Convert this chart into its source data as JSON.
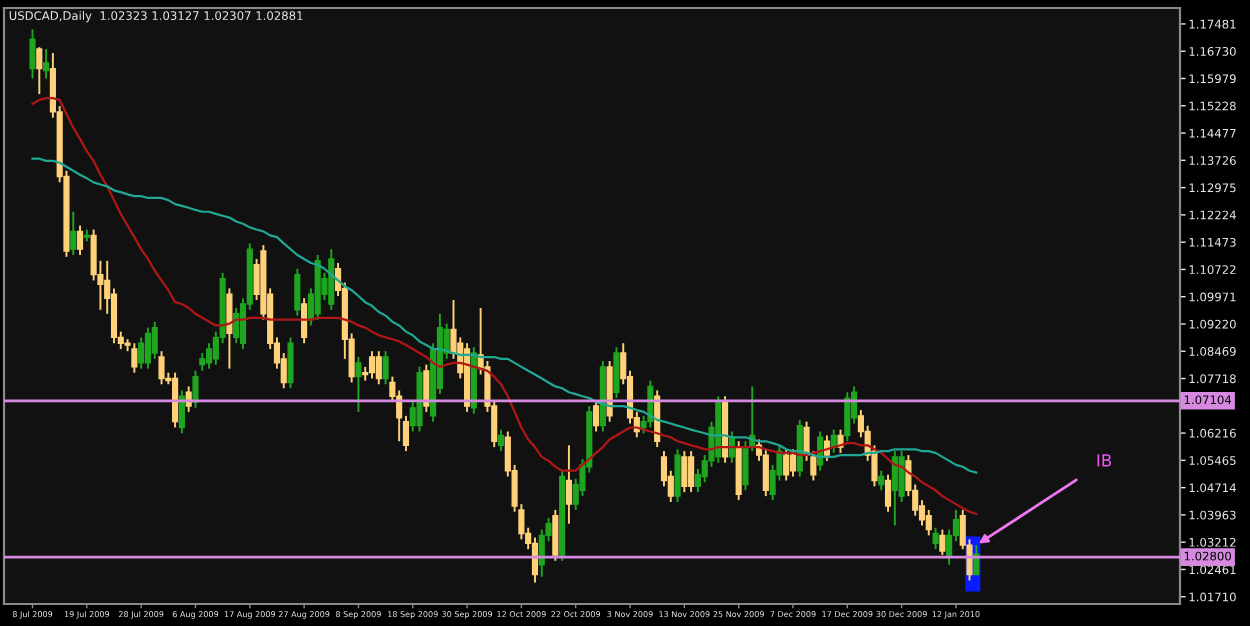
{
  "chart_data": {
    "type": "candlestick",
    "title": "USDCAD,Daily  1.02323 1.03127 1.02307 1.02881",
    "categories": [
      "8 Jul 2009",
      null,
      null,
      null,
      null,
      null,
      null,
      null,
      "19 Jul 2009",
      null,
      null,
      null,
      null,
      null,
      null,
      null,
      "28 Jul 2009",
      null,
      null,
      null,
      null,
      null,
      null,
      null,
      "6 Aug 2009",
      null,
      null,
      null,
      null,
      null,
      null,
      null,
      "17 Aug 2009",
      null,
      null,
      null,
      null,
      null,
      null,
      null,
      "27 Aug 2009",
      null,
      null,
      null,
      null,
      null,
      null,
      null,
      "8 Sep 2009",
      null,
      null,
      null,
      null,
      null,
      null,
      null,
      "18 Sep 2009",
      null,
      null,
      null,
      null,
      null,
      null,
      null,
      "30 Sep 2009",
      null,
      null,
      null,
      null,
      null,
      null,
      null,
      "12 Oct 2009",
      null,
      null,
      null,
      null,
      null,
      null,
      null,
      "22 Oct 2009",
      null,
      null,
      null,
      null,
      null,
      null,
      null,
      "3 Nov 2009",
      null,
      null,
      null,
      null,
      null,
      null,
      null,
      "13 Nov 2009",
      null,
      null,
      null,
      null,
      null,
      null,
      null,
      "25 Nov 2009",
      null,
      null,
      null,
      null,
      null,
      null,
      null,
      "7 Dec 2009",
      null,
      null,
      null,
      null,
      null,
      null,
      null,
      "17 Dec 2009",
      null,
      null,
      null,
      null,
      null,
      null,
      null,
      "30 Dec 2009",
      null,
      null,
      null,
      null,
      null,
      null,
      null,
      "12 Jan 2010",
      null,
      null,
      null
    ],
    "ohlc": [
      [
        1.1625,
        1.1733,
        1.1598,
        1.1706
      ],
      [
        1.1679,
        1.1684,
        1.1555,
        1.1625
      ],
      [
        1.162,
        1.1679,
        1.1598,
        1.1641
      ],
      [
        1.1625,
        1.1668,
        1.149,
        1.1506
      ],
      [
        1.1506,
        1.1522,
        1.1312,
        1.1328
      ],
      [
        1.1328,
        1.1344,
        1.1107,
        1.1123
      ],
      [
        1.1128,
        1.1231,
        1.1112,
        1.1177
      ],
      [
        1.1177,
        1.1193,
        1.1112,
        1.1128
      ],
      [
        1.1161,
        1.1182,
        1.115,
        1.1166
      ],
      [
        1.1166,
        1.1182,
        1.1042,
        1.1058
      ],
      [
        1.1058,
        1.1096,
        1.0961,
        1.1031
      ],
      [
        1.1042,
        1.1096,
        1.095,
        1.0993
      ],
      [
        1.1004,
        1.102,
        1.0869,
        1.0885
      ],
      [
        1.0885,
        1.0901,
        1.0853,
        1.0869
      ],
      [
        1.0869,
        1.088,
        1.0847,
        1.0864
      ],
      [
        1.0853,
        1.0869,
        1.0788,
        1.0804
      ],
      [
        1.0815,
        1.0885,
        1.0799,
        1.0869
      ],
      [
        1.0815,
        1.0912,
        1.0799,
        1.0896
      ],
      [
        1.0842,
        1.0928,
        1.0826,
        1.0912
      ],
      [
        1.0831,
        1.0847,
        1.0756,
        1.0772
      ],
      [
        1.0772,
        1.0788,
        1.0756,
        1.0766
      ],
      [
        1.0772,
        1.0788,
        1.0637,
        1.0653
      ],
      [
        1.0637,
        1.0739,
        1.0621,
        1.0723
      ],
      [
        1.0734,
        1.075,
        1.068,
        1.0696
      ],
      [
        1.0707,
        1.0793,
        1.0691,
        1.0777
      ],
      [
        1.081,
        1.0842,
        1.0793,
        1.0826
      ],
      [
        1.0815,
        1.0869,
        1.0799,
        1.0853
      ],
      [
        1.0826,
        1.0901,
        1.081,
        1.0885
      ],
      [
        1.0885,
        1.1063,
        1.0869,
        1.1047
      ],
      [
        1.1004,
        1.102,
        1.0799,
        1.0896
      ],
      [
        1.0885,
        1.0966,
        1.0869,
        1.095
      ],
      [
        1.0869,
        1.0993,
        1.0853,
        1.0977
      ],
      [
        1.0977,
        1.1144,
        1.0961,
        1.1128
      ],
      [
        1.1085,
        1.1101,
        1.0988,
        1.1004
      ],
      [
        1.1123,
        1.1139,
        1.0934,
        1.095
      ],
      [
        1.1004,
        1.102,
        1.0853,
        1.0869
      ],
      [
        1.0869,
        1.0885,
        1.0799,
        1.0815
      ],
      [
        1.0826,
        1.0842,
        1.0745,
        1.0761
      ],
      [
        1.0761,
        1.0885,
        1.0745,
        1.0869
      ],
      [
        1.0961,
        1.1074,
        1.0945,
        1.1058
      ],
      [
        1.0977,
        1.0993,
        1.0869,
        1.0885
      ],
      [
        1.0934,
        1.102,
        1.0918,
        1.1004
      ],
      [
        1.095,
        1.1112,
        1.0934,
        1.1096
      ],
      [
        1.1004,
        1.1063,
        1.0988,
        1.1047
      ],
      [
        1.0977,
        1.1128,
        1.0961,
        1.1101
      ],
      [
        1.1074,
        1.109,
        1.0999,
        1.1015
      ],
      [
        1.102,
        1.1036,
        1.0826,
        1.088
      ],
      [
        1.088,
        1.0896,
        1.0761,
        1.0777
      ],
      [
        1.0777,
        1.0831,
        1.068,
        1.0815
      ],
      [
        1.0788,
        1.0804,
        1.0766,
        1.0783
      ],
      [
        1.0831,
        1.0847,
        1.0772,
        1.0788
      ],
      [
        1.0831,
        1.0847,
        1.0756,
        1.0772
      ],
      [
        1.0772,
        1.0847,
        1.0756,
        1.0831
      ],
      [
        1.0761,
        1.0777,
        1.0707,
        1.0723
      ],
      [
        1.0723,
        1.0739,
        1.0599,
        1.0664
      ],
      [
        1.0653,
        1.0669,
        1.0572,
        1.0588
      ],
      [
        1.0642,
        1.0707,
        1.0626,
        1.0691
      ],
      [
        1.0642,
        1.0804,
        1.0626,
        1.0788
      ],
      [
        1.0793,
        1.081,
        1.068,
        1.0696
      ],
      [
        1.0669,
        1.0869,
        1.0653,
        1.0853
      ],
      [
        1.0745,
        1.095,
        1.0729,
        1.0912
      ],
      [
        1.0842,
        1.0923,
        1.0826,
        1.0907
      ],
      [
        1.0907,
        1.0988,
        1.0826,
        1.0842
      ],
      [
        1.0869,
        1.0885,
        1.0772,
        1.0788
      ],
      [
        1.0853,
        1.0869,
        1.068,
        1.0696
      ],
      [
        1.0691,
        1.0858,
        1.0675,
        1.0842
      ],
      [
        1.0837,
        1.0966,
        1.0783,
        1.0799
      ],
      [
        1.0804,
        1.082,
        1.068,
        1.0696
      ],
      [
        1.0696,
        1.0712,
        1.0583,
        1.0599
      ],
      [
        1.0588,
        1.0631,
        1.0572,
        1.0615
      ],
      [
        1.061,
        1.0626,
        1.0502,
        1.0518
      ],
      [
        1.0518,
        1.0534,
        1.0405,
        1.0421
      ],
      [
        1.041,
        1.0426,
        1.0329,
        1.0345
      ],
      [
        1.0345,
        1.0361,
        1.0302,
        1.0318
      ],
      [
        1.0318,
        1.0334,
        1.021,
        1.0232
      ],
      [
        1.0259,
        1.0356,
        1.0226,
        1.034
      ],
      [
        1.034,
        1.0388,
        1.0324,
        1.0372
      ],
      [
        1.0394,
        1.041,
        1.027,
        1.0286
      ],
      [
        1.0286,
        1.0518,
        1.027,
        1.0502
      ],
      [
        1.0491,
        1.0588,
        1.0372,
        1.0426
      ],
      [
        1.0426,
        1.0496,
        1.041,
        1.048
      ],
      [
        1.0464,
        1.055,
        1.0448,
        1.0534
      ],
      [
        1.0529,
        1.0696,
        1.0513,
        1.068
      ],
      [
        1.0696,
        1.0712,
        1.0626,
        1.0642
      ],
      [
        1.0642,
        1.082,
        1.0626,
        1.0804
      ],
      [
        1.0804,
        1.082,
        1.0653,
        1.0669
      ],
      [
        1.0734,
        1.0858,
        1.0718,
        1.0842
      ],
      [
        1.0842,
        1.0869,
        1.0756,
        1.0772
      ],
      [
        1.0777,
        1.0793,
        1.0648,
        1.0664
      ],
      [
        1.0664,
        1.068,
        1.061,
        1.0626
      ],
      [
        1.0637,
        1.0669,
        1.0621,
        1.0653
      ],
      [
        1.0653,
        1.0766,
        1.0637,
        1.075
      ],
      [
        1.0723,
        1.0739,
        1.0583,
        1.0599
      ],
      [
        1.0556,
        1.0572,
        1.0475,
        1.0491
      ],
      [
        1.0502,
        1.0518,
        1.0432,
        1.0448
      ],
      [
        1.0448,
        1.0577,
        1.0432,
        1.0561
      ],
      [
        1.0556,
        1.0572,
        1.0459,
        1.0475
      ],
      [
        1.0556,
        1.0572,
        1.0459,
        1.0475
      ],
      [
        1.0475,
        1.0523,
        1.0459,
        1.0507
      ],
      [
        1.0502,
        1.0561,
        1.0486,
        1.0545
      ],
      [
        1.0545,
        1.0653,
        1.0529,
        1.0637
      ],
      [
        1.0556,
        1.0723,
        1.054,
        1.0707
      ],
      [
        1.0707,
        1.0723,
        1.054,
        1.0556
      ],
      [
        1.0556,
        1.0626,
        1.054,
        1.061
      ],
      [
        1.0583,
        1.0599,
        1.0437,
        1.0453
      ],
      [
        1.048,
        1.0599,
        1.0464,
        1.0583
      ],
      [
        1.0588,
        1.075,
        1.0572,
        1.0615
      ],
      [
        1.0588,
        1.0604,
        1.0545,
        1.0561
      ],
      [
        1.0561,
        1.0577,
        1.0448,
        1.0464
      ],
      [
        1.0453,
        1.0534,
        1.0437,
        1.0518
      ],
      [
        1.0507,
        1.0588,
        1.0491,
        1.0572
      ],
      [
        1.0561,
        1.0577,
        1.0491,
        1.0507
      ],
      [
        1.0561,
        1.0577,
        1.0502,
        1.0518
      ],
      [
        1.0518,
        1.0658,
        1.0502,
        1.0642
      ],
      [
        1.0637,
        1.0653,
        1.0545,
        1.0561
      ],
      [
        1.0556,
        1.0572,
        1.0491,
        1.0507
      ],
      [
        1.0534,
        1.0626,
        1.0518,
        1.061
      ],
      [
        1.0599,
        1.0615,
        1.0545,
        1.0561
      ],
      [
        1.0583,
        1.0631,
        1.0567,
        1.0615
      ],
      [
        1.0615,
        1.0631,
        1.0567,
        1.0583
      ],
      [
        1.0615,
        1.0734,
        1.0599,
        1.0718
      ],
      [
        1.0664,
        1.075,
        1.0648,
        1.0734
      ],
      [
        1.0669,
        1.0685,
        1.061,
        1.0626
      ],
      [
        1.0626,
        1.0642,
        1.0545,
        1.0561
      ],
      [
        1.0572,
        1.0588,
        1.0475,
        1.0491
      ],
      [
        1.048,
        1.0518,
        1.0464,
        1.0502
      ],
      [
        1.0491,
        1.0507,
        1.0405,
        1.0421
      ],
      [
        1.0464,
        1.0572,
        1.0367,
        1.0556
      ],
      [
        1.0448,
        1.0572,
        1.0432,
        1.0556
      ],
      [
        1.0545,
        1.0561,
        1.0448,
        1.0464
      ],
      [
        1.0464,
        1.048,
        1.0394,
        1.041
      ],
      [
        1.0421,
        1.0437,
        1.0367,
        1.0383
      ],
      [
        1.0394,
        1.041,
        1.034,
        1.0356
      ],
      [
        1.0318,
        1.0361,
        1.0302,
        1.0345
      ],
      [
        1.034,
        1.0356,
        1.0286,
        1.0297
      ],
      [
        1.0286,
        1.0356,
        1.0259,
        1.034
      ],
      [
        1.034,
        1.041,
        1.0324,
        1.0383
      ],
      [
        1.0394,
        1.041,
        1.0302,
        1.0313
      ],
      [
        1.0313,
        1.0329,
        1.0216,
        1.0232
      ],
      [
        1.0232,
        1.0313,
        1.0231,
        1.0288
      ]
    ],
    "colors": [
      "#1fa51f",
      "#ffd27a",
      "#1fa51f",
      "#ffd27a",
      "#ffd27a",
      "#ffd27a",
      "#1fa51f",
      "#ffd27a",
      "#1fa51f",
      "#ffd27a",
      "#ffd27a",
      "#ffd27a",
      "#ffd27a",
      "#ffd27a",
      "#ffd27a",
      "#ffd27a",
      "#1fa51f",
      "#1fa51f",
      "#1fa51f",
      "#ffd27a",
      "#ffd27a",
      "#ffd27a",
      "#1fa51f",
      "#ffd27a",
      "#1fa51f",
      "#1fa51f",
      "#1fa51f",
      "#1fa51f",
      "#1fa51f",
      "#ffd27a",
      "#1fa51f",
      "#1fa51f",
      "#1fa51f",
      "#ffd27a",
      "#ffd27a",
      "#ffd27a",
      "#ffd27a",
      "#ffd27a",
      "#1fa51f",
      "#1fa51f",
      "#ffd27a",
      "#1fa51f",
      "#1fa51f",
      "#1fa51f",
      "#1fa51f",
      "#ffd27a",
      "#ffd27a",
      "#ffd27a",
      "#1fa51f",
      "#ffd27a",
      "#ffd27a",
      "#ffd27a",
      "#1fa51f",
      "#ffd27a",
      "#ffd27a",
      "#ffd27a",
      "#1fa51f",
      "#1fa51f",
      "#ffd27a",
      "#1fa51f",
      "#1fa51f",
      "#1fa51f",
      "#ffd27a",
      "#ffd27a",
      "#ffd27a",
      "#1fa51f",
      "#ffd27a",
      "#ffd27a",
      "#ffd27a",
      "#1fa51f",
      "#ffd27a",
      "#ffd27a",
      "#ffd27a",
      "#ffd27a",
      "#ffd27a",
      "#1fa51f",
      "#1fa51f",
      "#ffd27a",
      "#1fa51f",
      "#ffd27a",
      "#1fa51f",
      "#1fa51f",
      "#1fa51f",
      "#ffd27a",
      "#1fa51f",
      "#ffd27a",
      "#1fa51f",
      "#ffd27a",
      "#ffd27a",
      "#ffd27a",
      "#1fa51f",
      "#1fa51f",
      "#ffd27a",
      "#ffd27a",
      "#ffd27a",
      "#1fa51f",
      "#ffd27a",
      "#ffd27a",
      "#1fa51f",
      "#1fa51f",
      "#1fa51f",
      "#1fa51f",
      "#ffd27a",
      "#1fa51f",
      "#ffd27a",
      "#1fa51f",
      "#1fa51f",
      "#ffd27a",
      "#ffd27a",
      "#1fa51f",
      "#1fa51f",
      "#ffd27a",
      "#ffd27a",
      "#1fa51f",
      "#ffd27a",
      "#ffd27a",
      "#1fa51f",
      "#ffd27a",
      "#1fa51f",
      "#ffd27a",
      "#1fa51f",
      "#1fa51f",
      "#ffd27a",
      "#ffd27a",
      "#ffd27a",
      "#1fa51f",
      "#ffd27a",
      "#1fa51f",
      "#1fa51f",
      "#ffd27a",
      "#ffd27a",
      "#ffd27a",
      "#ffd27a",
      "#1fa51f",
      "#ffd27a",
      "#1fa51f",
      "#1fa51f",
      "#ffd27a",
      "#ffd27a",
      "#1fa51f"
    ],
    "series": [
      {
        "type": "line",
        "color": "#b01818",
        "values": [
          1.1528,
          1.1539,
          1.1544,
          1.1544,
          1.1539,
          1.1501,
          1.1463,
          1.1431,
          1.1398,
          1.1371,
          1.1333,
          1.1301,
          1.1263,
          1.1225,
          1.1193,
          1.1161,
          1.1128,
          1.1101,
          1.1069,
          1.1042,
          1.1015,
          1.0982,
          1.0977,
          1.0966,
          1.095,
          1.0939,
          1.0928,
          1.0918,
          1.0918,
          1.0923,
          1.0934,
          1.0934,
          1.0939,
          1.0939,
          1.0939,
          1.0934,
          1.0934,
          1.0934,
          1.0934,
          1.0934,
          1.0934,
          1.0934,
          1.0939,
          1.0939,
          1.0939,
          1.0939,
          1.0934,
          1.0928,
          1.0918,
          1.0912,
          1.0901,
          1.0891,
          1.0885,
          1.088,
          1.0874,
          1.0864,
          1.0853,
          1.0842,
          1.0831,
          1.0815,
          1.0804,
          1.081,
          1.0815,
          1.0815,
          1.081,
          1.0804,
          1.0799,
          1.0793,
          1.0777,
          1.0756,
          1.0723,
          1.068,
          1.0637,
          1.0604,
          1.0583,
          1.0556,
          1.0545,
          1.0529,
          1.0518,
          1.0518,
          1.0518,
          1.0534,
          1.055,
          1.0567,
          1.0583,
          1.0604,
          1.0615,
          1.0626,
          1.0637,
          1.0637,
          1.0631,
          1.0626,
          1.0621,
          1.0615,
          1.061,
          1.0599,
          1.0594,
          1.0588,
          1.0583,
          1.0577,
          1.0577,
          1.0583,
          1.0583,
          1.0583,
          1.0583,
          1.0583,
          1.0583,
          1.0583,
          1.0577,
          1.0572,
          1.0567,
          1.0567,
          1.0567,
          1.0561,
          1.0561,
          1.0567,
          1.0572,
          1.0577,
          1.0583,
          1.0588,
          1.0594,
          1.0594,
          1.0588,
          1.0588,
          1.0577,
          1.0567,
          1.055,
          1.0534,
          1.0529,
          1.0513,
          1.0502,
          1.0486,
          1.0475,
          1.0464,
          1.0448,
          1.0437,
          1.0426,
          1.0415,
          1.0405,
          1.0399
        ]
      },
      {
        "type": "line",
        "color": "#20a894",
        "values": [
          1.1377,
          1.1377,
          1.1371,
          1.1371,
          1.1366,
          1.1355,
          1.1344,
          1.1333,
          1.1323,
          1.1312,
          1.1306,
          1.1301,
          1.129,
          1.1285,
          1.1279,
          1.1274,
          1.1274,
          1.1269,
          1.1269,
          1.1269,
          1.1263,
          1.1252,
          1.1247,
          1.1242,
          1.1236,
          1.1231,
          1.1231,
          1.1225,
          1.122,
          1.1215,
          1.1204,
          1.1198,
          1.1188,
          1.1182,
          1.1177,
          1.1166,
          1.1161,
          1.1144,
          1.1128,
          1.1112,
          1.1101,
          1.109,
          1.1085,
          1.1074,
          1.1058,
          1.1042,
          1.1026,
          1.1015,
          1.0999,
          1.0982,
          1.0972,
          1.0955,
          1.0945,
          1.0928,
          1.0918,
          1.0901,
          1.0891,
          1.0874,
          1.0864,
          1.0853,
          1.0853,
          1.0847,
          1.0842,
          1.0837,
          1.0837,
          1.0837,
          1.0831,
          1.0831,
          1.0831,
          1.0826,
          1.0826,
          1.0815,
          1.0804,
          1.0793,
          1.0783,
          1.0772,
          1.0761,
          1.075,
          1.0745,
          1.0734,
          1.0729,
          1.0723,
          1.0718,
          1.0707,
          1.0702,
          1.0696,
          1.0696,
          1.0696,
          1.0691,
          1.0685,
          1.068,
          1.0669,
          1.0658,
          1.0653,
          1.0648,
          1.0642,
          1.0637,
          1.0631,
          1.0626,
          1.0621,
          1.0615,
          1.0615,
          1.0615,
          1.061,
          1.061,
          1.061,
          1.0604,
          1.0599,
          1.0599,
          1.0594,
          1.0588,
          1.0577,
          1.0572,
          1.0572,
          1.0567,
          1.0561,
          1.0556,
          1.0556,
          1.0556,
          1.0561,
          1.0561,
          1.0561,
          1.0561,
          1.0567,
          1.0567,
          1.0572,
          1.0572,
          1.0577,
          1.0577,
          1.0577,
          1.0577,
          1.0572,
          1.0572,
          1.0567,
          1.0556,
          1.0545,
          1.0534,
          1.0529,
          1.0518,
          1.0513
        ]
      }
    ],
    "ylim": [
      1.0151,
      1.1792
    ],
    "yticks": [
      {
        "value": 1.0171,
        "label": "1.01710"
      },
      {
        "value": 1.02461,
        "label": "1.02461"
      },
      {
        "value": 1.03212,
        "label": "1.03212"
      },
      {
        "value": 1.03963,
        "label": "1.03963"
      },
      {
        "value": 1.04714,
        "label": "1.04714"
      },
      {
        "value": 1.05465,
        "label": "1.05465"
      },
      {
        "value": 1.06216,
        "label": "1.06216"
      },
      {
        "value": 1.07718,
        "label": "1.07718"
      },
      {
        "value": 1.08469,
        "label": "1.08469"
      },
      {
        "value": 1.0922,
        "label": "1.09220"
      },
      {
        "value": 1.09971,
        "label": "1.09971"
      },
      {
        "value": 1.10722,
        "label": "1.10722"
      },
      {
        "value": 1.11473,
        "label": "1.11473"
      },
      {
        "value": 1.12224,
        "label": "1.12224"
      },
      {
        "value": 1.12975,
        "label": "1.12975"
      },
      {
        "value": 1.13726,
        "label": "1.13726"
      },
      {
        "value": 1.14477,
        "label": "1.14477"
      },
      {
        "value": 1.15228,
        "label": "1.15228"
      },
      {
        "value": 1.15979,
        "label": "1.15979"
      },
      {
        "value": 1.1673,
        "label": "1.16730"
      },
      {
        "value": 1.17481,
        "label": "1.17481"
      }
    ],
    "ref_lines": [
      {
        "axis": "y",
        "value": 1.07104,
        "label": "1.07104",
        "color": "#d58ae0"
      },
      {
        "axis": "y",
        "value": 1.028,
        "label": "1.02800",
        "color": "#d58ae0"
      }
    ],
    "annotations": [
      "IB"
    ],
    "grid": false,
    "legend": false
  }
}
